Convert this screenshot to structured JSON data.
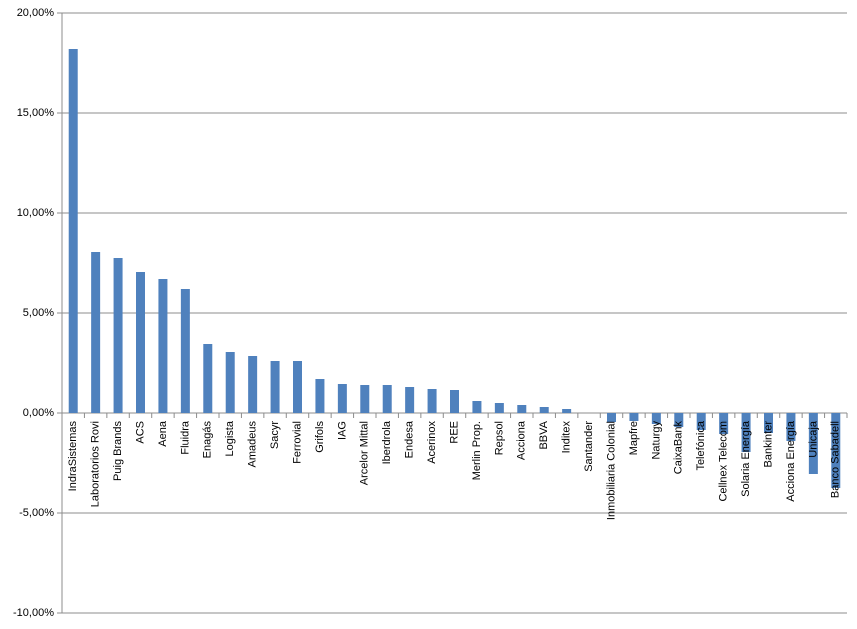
{
  "chart_data": {
    "type": "bar",
    "categories": [
      "IndraSistemas",
      "Laboratorios Rovi",
      "Puig Brands",
      "ACS",
      "Aena",
      "Fluidra",
      "Enagás",
      "Logista",
      "Amadeus",
      "Sacyr",
      "Ferrovial",
      "Grifols",
      "IAG",
      "Arcelor Mittal",
      "Iberdrola",
      "Endesa",
      "Acerinox",
      "REE",
      "Merlin Prop.",
      "Repsol",
      "Acciona",
      "BBVA",
      "Inditex",
      "Santander",
      "Inmobiliaria Colonial",
      "Mapfre",
      "Naturgy",
      "CaixaBank",
      "Telefónica",
      "Cellnex Telecom",
      "Solaria Energía",
      "Bankinter",
      "Acciona Energía",
      "Unicaja",
      "Banco Sabadell"
    ],
    "values": [
      18.2,
      8.05,
      7.75,
      7.05,
      6.7,
      6.2,
      3.45,
      3.05,
      2.85,
      2.6,
      2.6,
      1.7,
      1.45,
      1.4,
      1.4,
      1.3,
      1.2,
      1.15,
      0.6,
      0.5,
      0.4,
      0.3,
      0.2,
      0.0,
      -0.45,
      -0.4,
      -0.55,
      -0.7,
      -0.85,
      -1.05,
      -1.95,
      -1.0,
      -1.4,
      -3.05,
      -3.75
    ],
    "color": "#4f81bd",
    "ylim": [
      -10,
      20
    ],
    "yticks": [
      {
        "value": -10,
        "label": "-10,00%"
      },
      {
        "value": -5,
        "label": "-5,00%"
      },
      {
        "value": 0,
        "label": "0,00%"
      },
      {
        "value": 5,
        "label": "5,00%"
      },
      {
        "value": 10,
        "label": "10,00%"
      },
      {
        "value": 15,
        "label": "15,00%"
      },
      {
        "value": 20,
        "label": "20,00%"
      }
    ],
    "grid": true
  }
}
